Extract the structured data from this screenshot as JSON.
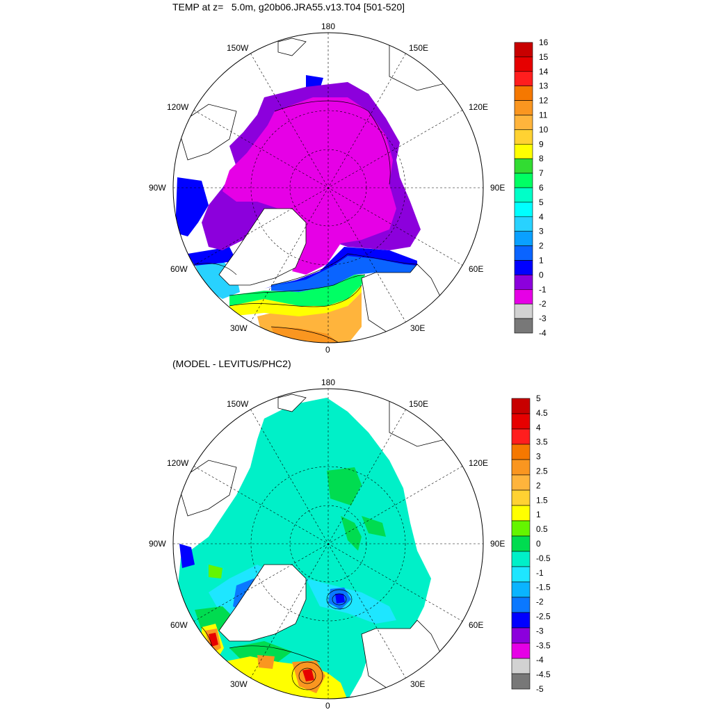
{
  "top": {
    "title": "TEMP at z=   5.0m, g20b06.JRA55.v13.T04 [501-520]",
    "lon_labels": [
      "180",
      "150W",
      "150E",
      "120W",
      "120E",
      "90W",
      "90E",
      "60W",
      "60E",
      "30W",
      "30E",
      "0"
    ],
    "colorbar": {
      "labels": [
        "16",
        "15",
        "14",
        "13",
        "12",
        "11",
        "10",
        "9",
        "8",
        "7",
        "6",
        "5",
        "4",
        "3",
        "2",
        "1",
        "0",
        "-1",
        "-2",
        "-3",
        "-4"
      ],
      "colors": [
        "#c80000",
        "#e60000",
        "#ff1e1e",
        "#f57800",
        "#fa9620",
        "#ffb43c",
        "#ffd232",
        "#ffff00",
        "#32dc32",
        "#00ff64",
        "#00ffc8",
        "#00ffff",
        "#28d2ff",
        "#0aa0ff",
        "#0a64ff",
        "#0000ff",
        "#8c00dc",
        "#e600e6",
        "#d2d2d2",
        "#787878"
      ]
    },
    "field_colors": {
      "arctic": "#e600e6",
      "shelf": "#8c00dc",
      "cold": "#0000ff",
      "cool": "#0a64ff",
      "mid": "#28d2ff",
      "green": "#00ff64",
      "yellow": "#ffff00",
      "warm": "#ffb43c",
      "hot": "#fa9620"
    }
  },
  "bottom": {
    "title": "(MODEL - LEVITUS/PHC2)",
    "lon_labels": [
      "180",
      "150W",
      "150E",
      "120W",
      "120E",
      "90W",
      "90E",
      "60W",
      "60E",
      "30W",
      "30E",
      "0"
    ],
    "colorbar": {
      "labels": [
        "5",
        "4.5",
        "4",
        "3.5",
        "3",
        "2.5",
        "2",
        "1.5",
        "1",
        "0.5",
        "0",
        "-0.5",
        "-1",
        "-1.5",
        "-2",
        "-2.5",
        "-3",
        "-3.5",
        "-4",
        "-4.5",
        "-5"
      ],
      "colors": [
        "#c80000",
        "#e60000",
        "#ff1e1e",
        "#f57800",
        "#fa9620",
        "#ffb43c",
        "#ffd232",
        "#ffff00",
        "#64f500",
        "#00dc50",
        "#00f0c8",
        "#1ee6ff",
        "#0ab4ff",
        "#0a78ff",
        "#0000ff",
        "#8c00dc",
        "#e600e6",
        "#d2d2d2",
        "#787878"
      ]
    },
    "field_colors": {
      "base": "#00f0c8",
      "green": "#00dc50",
      "cyan": "#1ee6ff",
      "blue": "#0a78ff",
      "dark": "#0000ff",
      "yellow": "#ffff00",
      "orange": "#fa9620",
      "red": "#e60000",
      "lime": "#64f500"
    }
  }
}
